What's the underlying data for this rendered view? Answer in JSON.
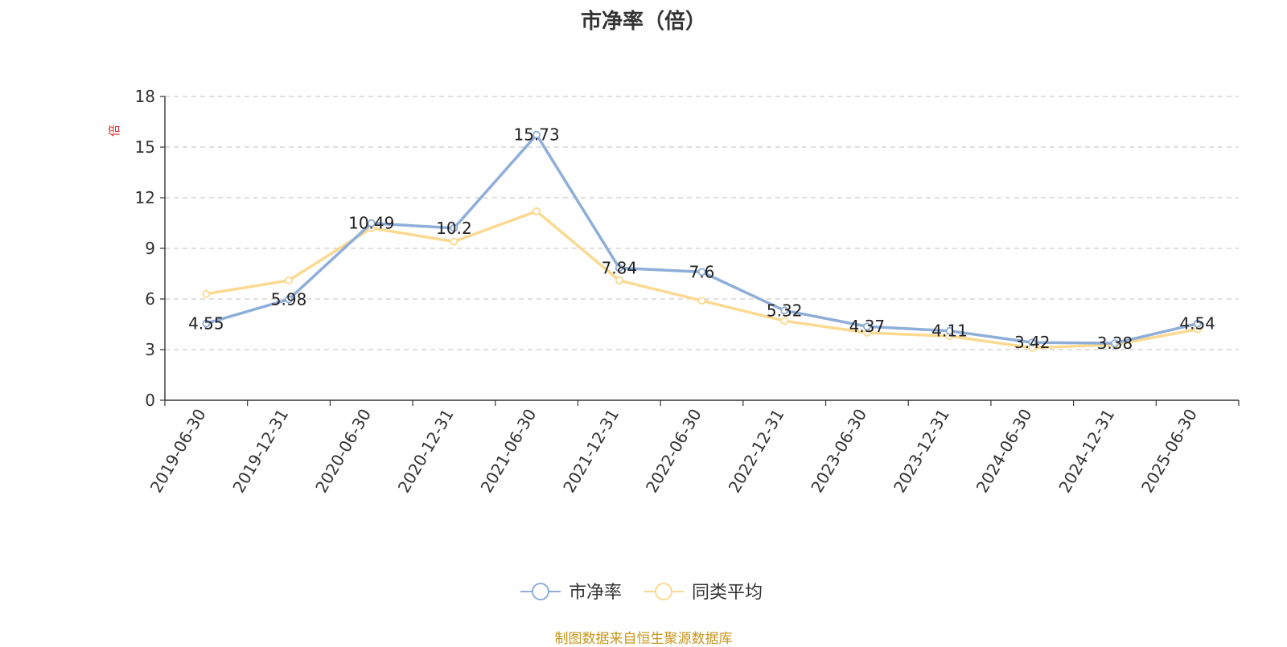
{
  "chart_data": {
    "type": "line",
    "title": "市净率（倍）",
    "ylabel": "倍",
    "ylim": [
      0,
      18
    ],
    "yticks": [
      "0",
      "3",
      "6",
      "9",
      "12",
      "15",
      "18"
    ],
    "categories": [
      "2019-06-30",
      "2019-12-31",
      "2020-06-30",
      "2020-12-31",
      "2021-06-30",
      "2021-12-31",
      "2022-06-30",
      "2022-12-31",
      "2023-06-30",
      "2023-12-31",
      "2024-06-30",
      "2024-12-31",
      "2025-06-30"
    ],
    "grid": true,
    "legend_position": "bottom",
    "series": [
      {
        "name": "市净率",
        "color": "#8eaed9",
        "values": [
          4.55,
          5.98,
          10.49,
          10.2,
          15.73,
          7.84,
          7.6,
          5.32,
          4.37,
          4.11,
          3.42,
          3.38,
          4.54
        ],
        "labels": [
          "4.55",
          "5.98",
          "10.49",
          "10.2",
          "15.73",
          "7.84",
          "7.6",
          "5.32",
          "4.37",
          "4.11",
          "3.42",
          "3.38",
          "4.54"
        ]
      },
      {
        "name": "同类平均",
        "color": "#fbd990",
        "values": [
          6.3,
          7.1,
          10.2,
          9.4,
          11.2,
          7.1,
          5.9,
          4.7,
          4.0,
          3.8,
          3.1,
          3.3,
          4.2
        ]
      }
    ]
  },
  "footer": {
    "source": "制图数据来自恒生聚源数据库"
  }
}
